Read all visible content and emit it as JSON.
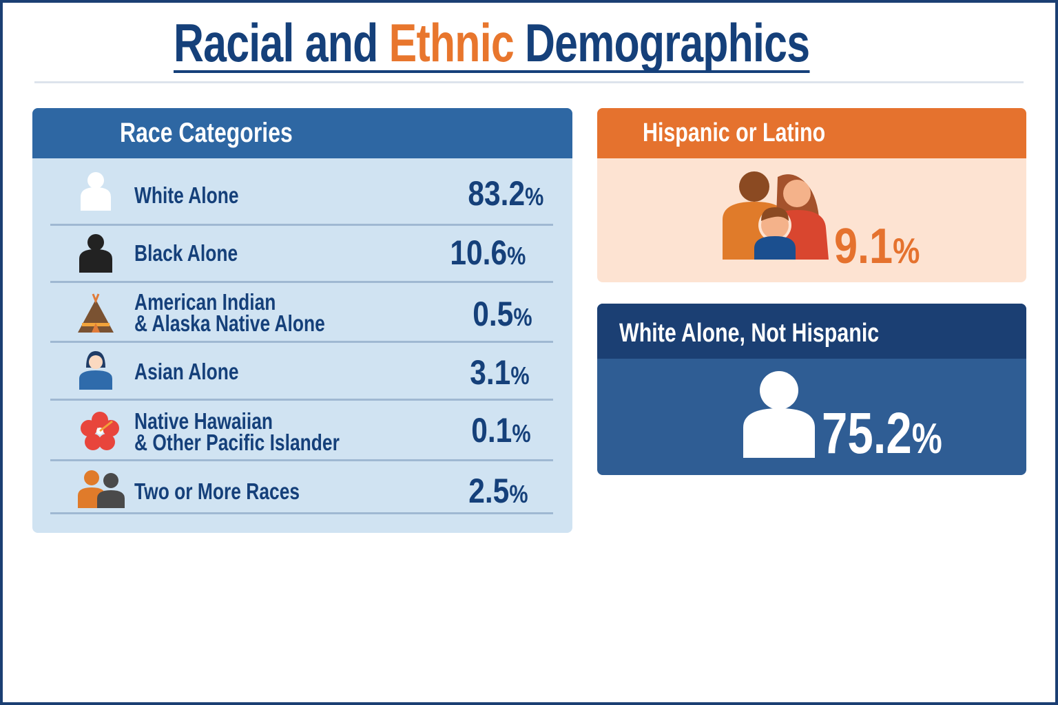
{
  "title": {
    "part1": "Racial and ",
    "accent": "Ethnic",
    "part2": " Demographics"
  },
  "race_panel": {
    "header": "Race Categories",
    "rows": [
      {
        "icon": "white-person-icon",
        "line1": "White Alone",
        "line2": "",
        "value": "83.2",
        "unit": "%"
      },
      {
        "icon": "black-person-icon",
        "line1": "Black Alone",
        "line2": "",
        "value": "10.6",
        "unit": "%"
      },
      {
        "icon": "teepee-icon",
        "line1": "American Indian",
        "line2": "& Alaska Native Alone",
        "value": "0.5",
        "unit": "%"
      },
      {
        "icon": "asian-woman-icon",
        "line1": "Asian Alone",
        "line2": "",
        "value": "3.1",
        "unit": "%"
      },
      {
        "icon": "hibiscus-icon",
        "line1": "Native Hawaiian",
        "line2": "& Other Pacific Islander",
        "value": "0.1",
        "unit": "%"
      },
      {
        "icon": "two-people-icon",
        "line1": "Two or More Races",
        "line2": "",
        "value": "2.5",
        "unit": "%"
      }
    ]
  },
  "hispanic": {
    "header": "Hispanic or Latino",
    "value": "9.1",
    "unit": "%",
    "icon": "family-icon",
    "colors": {
      "header": "#e5722e",
      "body": "#fde3d2"
    }
  },
  "white_not_hispanic": {
    "header": "White Alone, Not Hispanic",
    "value": "75.2",
    "unit": "%",
    "icon": "person-icon",
    "colors": {
      "header": "#1b3f73",
      "body": "#2f5d94"
    }
  },
  "colors": {
    "navy": "#15407a",
    "orange": "#e8762d",
    "panel": "#d0e3f2",
    "panel_header": "#2e67a3"
  }
}
